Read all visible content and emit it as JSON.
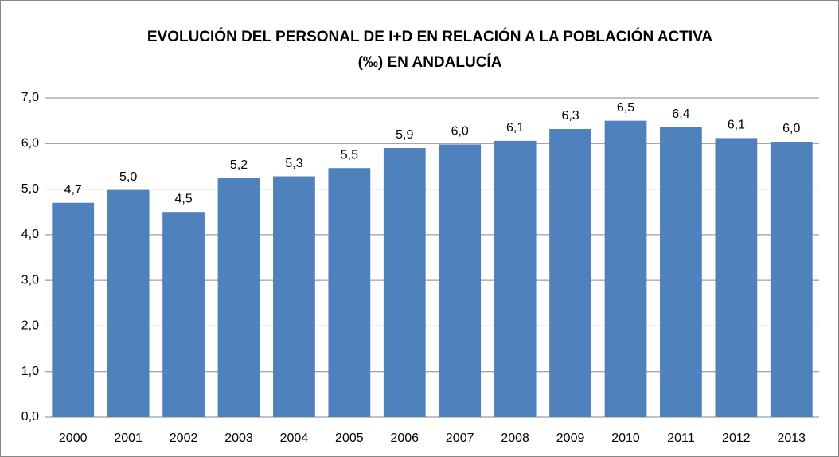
{
  "chart_data": {
    "type": "bar",
    "title": [
      "EVOLUCIÓN DEL PERSONAL DE I+D EN RELACIÓN A LA POBLACIÓN ACTIVA",
      "(‰) EN ANDALUCÍA"
    ],
    "categories": [
      "2000",
      "2001",
      "2002",
      "2003",
      "2004",
      "2005",
      "2006",
      "2007",
      "2008",
      "2009",
      "2010",
      "2011",
      "2012",
      "2013"
    ],
    "values": [
      4.7,
      4.98,
      4.5,
      5.24,
      5.28,
      5.46,
      5.9,
      5.98,
      6.06,
      6.32,
      6.5,
      6.36,
      6.12,
      6.04
    ],
    "value_labels": [
      "4,7",
      "5,0",
      "4,5",
      "5,2",
      "5,3",
      "5,5",
      "5,9",
      "6,0",
      "6,1",
      "6,3",
      "6,5",
      "6,4",
      "6,1",
      "6,0"
    ],
    "color": "#4f81bd",
    "ylim": [
      0,
      7
    ],
    "yticks": [
      {
        "value": 0,
        "label": "0,0"
      },
      {
        "value": 1,
        "label": "1,0"
      },
      {
        "value": 2,
        "label": "2,0"
      },
      {
        "value": 3,
        "label": "3,0"
      },
      {
        "value": 4,
        "label": "4,0"
      },
      {
        "value": 5,
        "label": "5,0"
      },
      {
        "value": 6,
        "label": "6,0"
      },
      {
        "value": 7,
        "label": "7,0"
      }
    ],
    "grid": true
  }
}
